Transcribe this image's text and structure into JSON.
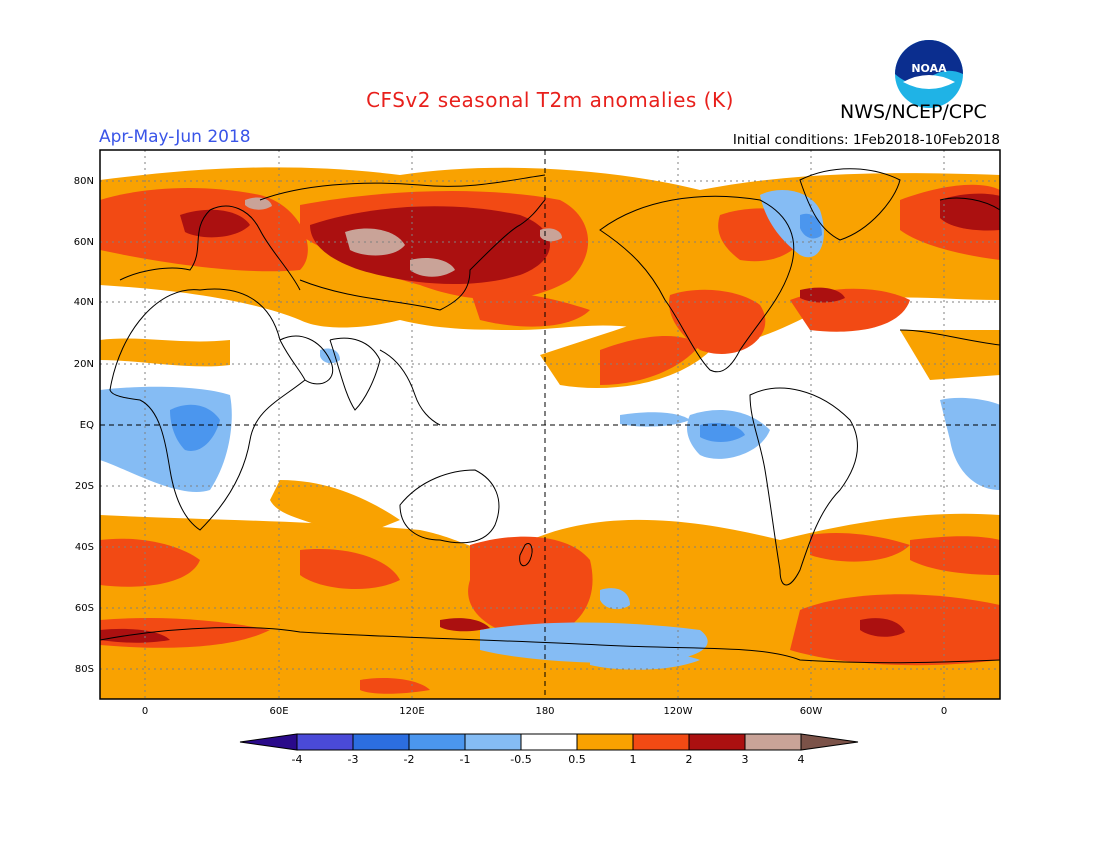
{
  "header": {
    "title": "CFSv2 seasonal T2m anomalies (K)",
    "period": "Apr-May-Jun 2018",
    "initial_conditions": "Initial conditions: 1Feb2018-10Feb2018",
    "agency": "NWS/NCEP/CPC",
    "logo_text": "NOAA"
  },
  "map": {
    "lat_labels": [
      "80N",
      "60N",
      "40N",
      "20N",
      "EQ",
      "20S",
      "40S",
      "60S",
      "80S"
    ],
    "lon_labels": [
      "0",
      "60E",
      "120E",
      "180",
      "120W",
      "60W",
      "0"
    ]
  },
  "colorbar": {
    "tick_labels": [
      "-4",
      "-3",
      "-2",
      "-1",
      "-0.5",
      "0.5",
      "1",
      "2",
      "3",
      "4"
    ],
    "colors": {
      "lt_-4": "#2a0a8a",
      "-4_-3": "#4a4ad8",
      "-3_-2": "#2c6ee0",
      "-2_-1": "#4b96ee",
      "-1_-0.5": "#85bcf4",
      "-0.5_0.5": "#ffffff",
      "0.5_1": "#f9a201",
      "1_2": "#f24a14",
      "2_3": "#ab1010",
      "3_4": "#c9a398",
      "gt_4": "#7b5248"
    }
  }
}
